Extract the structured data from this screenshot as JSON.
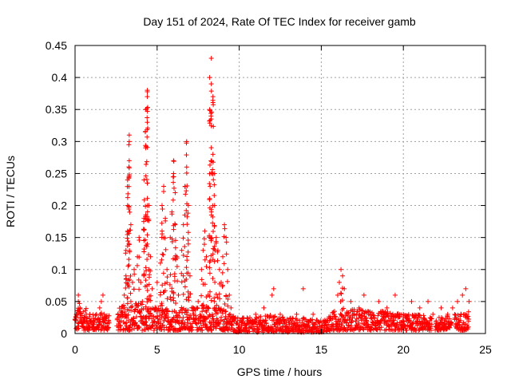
{
  "chart_data": {
    "type": "scatter",
    "title": "Day 151 of 2024, Rate Of TEC Index for receiver gamb",
    "xlabel": "GPS time / hours",
    "ylabel": "ROTI / TECUs",
    "xlim": [
      0,
      25
    ],
    "ylim": [
      0,
      0.45
    ],
    "x_ticks": [
      0,
      5,
      10,
      15,
      20,
      25
    ],
    "x_tick_labels": [
      "0",
      "5",
      "10",
      "15",
      "20",
      "25"
    ],
    "y_ticks": [
      0,
      0.05,
      0.1,
      0.15,
      0.2,
      0.25,
      0.3,
      0.35,
      0.4,
      0.45
    ],
    "y_tick_labels": [
      "0",
      "0.05",
      "0.1",
      "0.15",
      "0.2",
      "0.25",
      "0.3",
      "0.35",
      "0.4",
      "0.45"
    ],
    "grid": true,
    "marker": "+",
    "series": [
      {
        "name": "ROTI",
        "color": "#ff0000",
        "points": [
          [
            0.1,
            0.03
          ],
          [
            0.2,
            0.05
          ],
          [
            0.2,
            0.06
          ],
          [
            0.3,
            0.04
          ],
          [
            0.4,
            0.02
          ],
          [
            0.5,
            0.01
          ],
          [
            0.7,
            0.02
          ],
          [
            0.9,
            0.03
          ],
          [
            1.1,
            0.02
          ],
          [
            1.3,
            0.03
          ],
          [
            1.5,
            0.04
          ],
          [
            1.6,
            0.05
          ],
          [
            1.7,
            0.06
          ],
          [
            1.8,
            0.02
          ],
          [
            2.0,
            0.01
          ],
          [
            2.8,
            0.02
          ],
          [
            2.9,
            0.03
          ],
          [
            3.0,
            0.06
          ],
          [
            3.1,
            0.09
          ],
          [
            3.1,
            0.13
          ],
          [
            3.2,
            0.16
          ],
          [
            3.2,
            0.2
          ],
          [
            3.2,
            0.24
          ],
          [
            3.3,
            0.27
          ],
          [
            3.3,
            0.3
          ],
          [
            3.3,
            0.31
          ],
          [
            3.4,
            0.17
          ],
          [
            3.4,
            0.05
          ],
          [
            3.5,
            0.08
          ],
          [
            3.6,
            0.1
          ],
          [
            3.8,
            0.12
          ],
          [
            3.9,
            0.15
          ],
          [
            4.0,
            0.08
          ],
          [
            4.1,
            0.05
          ],
          [
            4.2,
            0.18
          ],
          [
            4.2,
            0.24
          ],
          [
            4.3,
            0.29
          ],
          [
            4.3,
            0.35
          ],
          [
            4.4,
            0.37
          ],
          [
            4.4,
            0.38
          ],
          [
            4.4,
            0.33
          ],
          [
            4.5,
            0.2
          ],
          [
            4.5,
            0.1
          ],
          [
            4.6,
            0.12
          ],
          [
            4.7,
            0.07
          ],
          [
            5.0,
            0.08
          ],
          [
            5.2,
            0.11
          ],
          [
            5.3,
            0.16
          ],
          [
            5.3,
            0.2
          ],
          [
            5.4,
            0.23
          ],
          [
            5.5,
            0.18
          ],
          [
            5.6,
            0.1
          ],
          [
            5.8,
            0.15
          ],
          [
            5.9,
            0.19
          ],
          [
            6.0,
            0.25
          ],
          [
            6.0,
            0.27
          ],
          [
            6.1,
            0.22
          ],
          [
            6.1,
            0.17
          ],
          [
            6.2,
            0.12
          ],
          [
            6.3,
            0.06
          ],
          [
            6.5,
            0.13
          ],
          [
            6.6,
            0.17
          ],
          [
            6.7,
            0.23
          ],
          [
            6.8,
            0.3
          ],
          [
            6.8,
            0.26
          ],
          [
            6.9,
            0.2
          ],
          [
            6.9,
            0.14
          ],
          [
            7.0,
            0.09
          ],
          [
            7.1,
            0.04
          ],
          [
            7.5,
            0.05
          ],
          [
            7.7,
            0.1
          ],
          [
            7.8,
            0.13
          ],
          [
            7.9,
            0.16
          ],
          [
            8.0,
            0.12
          ],
          [
            8.1,
            0.06
          ],
          [
            8.2,
            0.35
          ],
          [
            8.2,
            0.4
          ],
          [
            8.3,
            0.43
          ],
          [
            8.3,
            0.39
          ],
          [
            8.4,
            0.37
          ],
          [
            8.4,
            0.28
          ],
          [
            8.5,
            0.25
          ],
          [
            8.5,
            0.2
          ],
          [
            8.6,
            0.15
          ],
          [
            8.7,
            0.13
          ],
          [
            8.8,
            0.1
          ],
          [
            8.9,
            0.08
          ],
          [
            9.0,
            0.12
          ],
          [
            9.1,
            0.17
          ],
          [
            9.2,
            0.15
          ],
          [
            9.3,
            0.1
          ],
          [
            9.4,
            0.06
          ],
          [
            9.5,
            0.04
          ],
          [
            9.7,
            0.02
          ],
          [
            10.0,
            0.01
          ],
          [
            10.5,
            0.02
          ],
          [
            11.0,
            0.03
          ],
          [
            11.5,
            0.04
          ],
          [
            12.0,
            0.06
          ],
          [
            12.1,
            0.07
          ],
          [
            12.5,
            0.03
          ],
          [
            13.0,
            0.02
          ],
          [
            13.5,
            0.03
          ],
          [
            13.9,
            0.07
          ],
          [
            14.5,
            0.03
          ],
          [
            15.0,
            0.01
          ],
          [
            15.5,
            0.02
          ],
          [
            16.0,
            0.06
          ],
          [
            16.1,
            0.08
          ],
          [
            16.2,
            0.1
          ],
          [
            16.3,
            0.09
          ],
          [
            16.4,
            0.07
          ],
          [
            16.8,
            0.05
          ],
          [
            17.3,
            0.04
          ],
          [
            17.6,
            0.06
          ],
          [
            18.0,
            0.03
          ],
          [
            18.5,
            0.05
          ],
          [
            19.0,
            0.04
          ],
          [
            19.5,
            0.06
          ],
          [
            20.0,
            0.03
          ],
          [
            20.5,
            0.05
          ],
          [
            21.0,
            0.04
          ],
          [
            21.5,
            0.05
          ],
          [
            21.8,
            0.03
          ],
          [
            22.0,
            0.02
          ],
          [
            22.3,
            0.04
          ],
          [
            22.7,
            0.03
          ],
          [
            23.0,
            0.04
          ],
          [
            23.3,
            0.05
          ],
          [
            23.6,
            0.06
          ],
          [
            23.8,
            0.07
          ],
          [
            24.0,
            0.05
          ]
        ],
        "band": [
          [
            0.0,
            0.005,
            0.035
          ],
          [
            0.3,
            0.005,
            0.05
          ],
          [
            1.0,
            0.005,
            0.03
          ],
          [
            2.0,
            0.005,
            0.035
          ],
          [
            2.6,
            0.005,
            0.04
          ],
          [
            3.0,
            0.005,
            0.045
          ],
          [
            4.0,
            0.005,
            0.05
          ],
          [
            5.0,
            0.005,
            0.04
          ],
          [
            6.0,
            0.005,
            0.04
          ],
          [
            7.0,
            0.005,
            0.04
          ],
          [
            8.0,
            0.005,
            0.045
          ],
          [
            9.0,
            0.005,
            0.04
          ],
          [
            10.0,
            0.002,
            0.025
          ],
          [
            11.0,
            0.002,
            0.025
          ],
          [
            12.0,
            0.002,
            0.03
          ],
          [
            13.0,
            0.002,
            0.025
          ],
          [
            14.0,
            0.002,
            0.025
          ],
          [
            15.0,
            0.002,
            0.02
          ],
          [
            16.0,
            0.005,
            0.04
          ],
          [
            17.0,
            0.005,
            0.04
          ],
          [
            18.0,
            0.005,
            0.035
          ],
          [
            19.0,
            0.005,
            0.035
          ],
          [
            20.0,
            0.005,
            0.03
          ],
          [
            21.0,
            0.005,
            0.03
          ],
          [
            21.7,
            0.005,
            0.025
          ],
          [
            22.0,
            0.005,
            0.025
          ],
          [
            23.0,
            0.005,
            0.03
          ],
          [
            24.0,
            0.005,
            0.035
          ]
        ],
        "gaps": [
          [
            2.1,
            2.55
          ],
          [
            21.75,
            21.95
          ],
          [
            22.95,
            23.1
          ]
        ]
      }
    ]
  }
}
